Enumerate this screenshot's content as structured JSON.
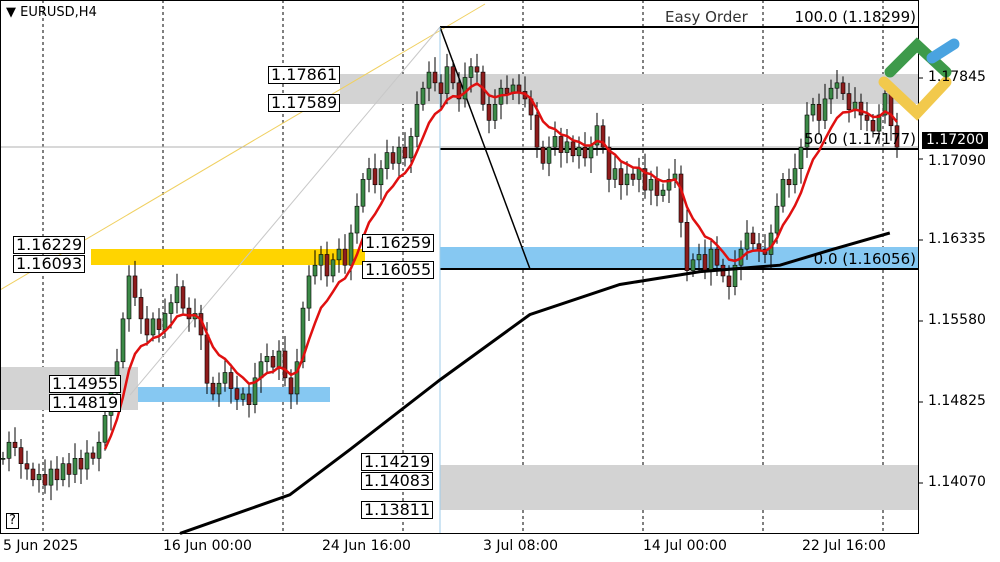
{
  "window": {
    "symbol_title": "EURUSD,H4",
    "help": "?",
    "plugin_label": "Easy Order"
  },
  "colors": {
    "bull": "#3c8a47",
    "bear": "#8e1c1c",
    "ma_fast": "#e01010",
    "ma_slow": "#000000",
    "zone_gray": "#d3d3d3",
    "zone_yellow": "#ffd400",
    "zone_blue": "#86c8f2"
  },
  "chart_data": {
    "type": "candlestick",
    "symbol": "EURUSD",
    "timeframe": "H4",
    "ylim": [
      1.1353,
      1.185
    ],
    "y_ticks": [
      "1.17845",
      "1.17090",
      "1.16335",
      "1.15580",
      "1.14825",
      "1.14070"
    ],
    "x_ticks": [
      "5 Jun 2025",
      "16 Jun 00:00",
      "24 Jun 16:00",
      "3 Jul 08:00",
      "14 Jul 00:00",
      "22 Jul 16:00"
    ],
    "closes": [
      1.143,
      1.1445,
      1.144,
      1.1425,
      1.142,
      1.141,
      1.1415,
      1.1405,
      1.142,
      1.141,
      1.1425,
      1.1415,
      1.143,
      1.142,
      1.1435,
      1.143,
      1.1445,
      1.147,
      1.1495,
      1.152,
      1.156,
      1.16,
      1.158,
      1.156,
      1.1545,
      1.156,
      1.155,
      1.1565,
      1.1575,
      1.159,
      1.157,
      1.156,
      1.1565,
      1.1545,
      1.15,
      1.149,
      1.15,
      1.151,
      1.1495,
      1.1485,
      1.149,
      1.148,
      1.1505,
      1.152,
      1.1525,
      1.1515,
      1.153,
      1.1505,
      1.149,
      1.152,
      1.157,
      1.16,
      1.161,
      1.162,
      1.16,
      1.1615,
      1.1625,
      1.161,
      1.164,
      1.1665,
      1.169,
      1.17,
      1.1685,
      1.17,
      1.1715,
      1.1705,
      1.172,
      1.171,
      1.173,
      1.176,
      1.1775,
      1.179,
      1.178,
      1.177,
      1.1795,
      1.178,
      1.1765,
      1.1785,
      1.1795,
      1.179,
      1.176,
      1.1745,
      1.176,
      1.1775,
      1.177,
      1.1778,
      1.1772,
      1.1765,
      1.175,
      1.172,
      1.1705,
      1.172,
      1.173,
      1.1715,
      1.1725,
      1.1712,
      1.172,
      1.171,
      1.1722,
      1.174,
      1.172,
      1.169,
      1.17,
      1.1685,
      1.1695,
      1.169,
      1.17,
      1.168,
      1.169,
      1.1675,
      1.168,
      1.169,
      1.1695,
      1.165,
      1.1605,
      1.1615,
      1.162,
      1.1605,
      1.1625,
      1.161,
      1.16,
      1.159,
      1.161,
      1.1625,
      1.164,
      1.163,
      1.1625,
      1.162,
      1.164,
      1.1665,
      1.169,
      1.1685,
      1.17,
      1.172,
      1.175,
      1.176,
      1.1745,
      1.1765,
      1.1775,
      1.178,
      1.177,
      1.1755,
      1.1762,
      1.175,
      1.1745,
      1.1735,
      1.175,
      1.177,
      1.174,
      1.172
    ],
    "slow_ma_points": [
      [
        29.5,
        1.136
      ],
      [
        47.8,
        1.1396
      ],
      [
        57.8,
        1.1438
      ],
      [
        72.8,
        1.1503
      ],
      [
        87.8,
        1.1564
      ],
      [
        102.8,
        1.1592
      ],
      [
        116.2,
        1.1604
      ],
      [
        129.5,
        1.161
      ],
      [
        137.8,
        1.1624
      ],
      [
        147.8,
        1.164
      ]
    ],
    "current_price": "1.17200",
    "zones": [
      {
        "color": "gray",
        "top": "1.17861",
        "bottom": "1.17589"
      },
      {
        "color": "yellow",
        "top": "1.16229",
        "bottom": "1.16093"
      },
      {
        "color": "blue",
        "top": "1.16259",
        "bottom": "1.16055"
      },
      {
        "color": "blue",
        "top": "1.14955",
        "bottom": "1.14819"
      },
      {
        "color": "gray",
        "top": "1.14219",
        "bottom": "1.14083",
        "extra": "1.13811"
      }
    ],
    "fibo": [
      {
        "label": "100.0 (1.18299)"
      },
      {
        "label": "50.0 (1.17177)"
      },
      {
        "label": "0.0 (1.16056)"
      }
    ]
  }
}
